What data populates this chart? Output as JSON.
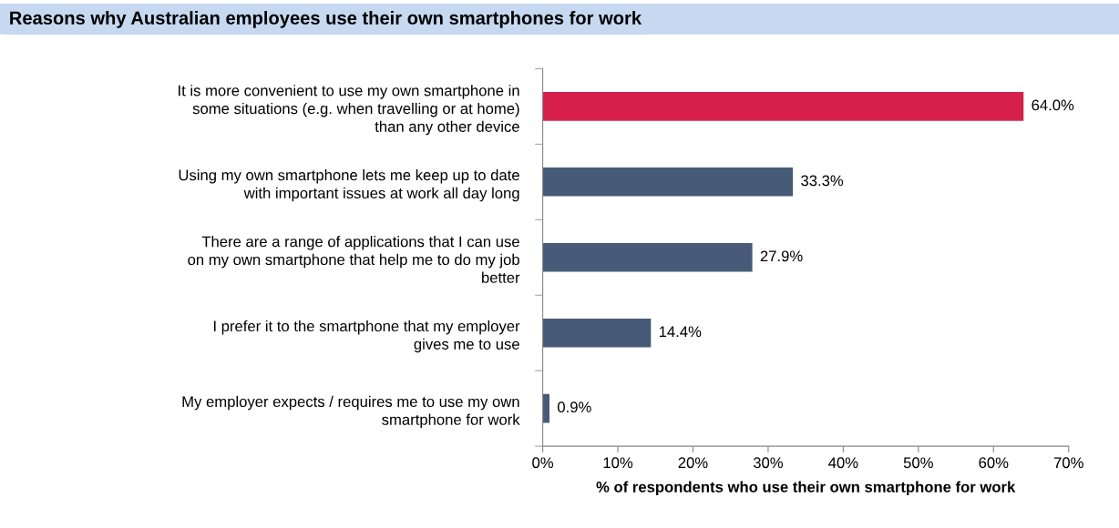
{
  "chart_data": {
    "type": "bar",
    "orientation": "horizontal",
    "title": "Reasons why Australian employees use their own smartphones for work",
    "xlabel": "% of respondents who use their own smartphone for work",
    "categories": [
      "It is more convenient to use my own smartphone in some situations (e.g. when travelling or at home) than any other device",
      "Using my own smartphone lets me keep up to date with important issues at work all day long",
      "There are a range of applications that I can use on my own smartphone that help me to do my job better",
      "I prefer it to the smartphone that my employer gives me to use",
      "My employer expects / requires me to use my own smartphone for work"
    ],
    "values": [
      64.0,
      33.3,
      27.9,
      14.4,
      0.9
    ],
    "value_labels": [
      "64.0%",
      "33.3%",
      "27.9%",
      "14.4%",
      "0.9%"
    ],
    "colors": [
      "#d71f4b",
      "#475a78",
      "#475a78",
      "#475a78",
      "#475a78"
    ],
    "xlim": [
      0,
      70
    ],
    "xticks": [
      {
        "value": 0,
        "label": "0%"
      },
      {
        "value": 10,
        "label": "10%"
      },
      {
        "value": 20,
        "label": "20%"
      },
      {
        "value": 30,
        "label": "30%"
      },
      {
        "value": 40,
        "label": "40%"
      },
      {
        "value": 50,
        "label": "50%"
      },
      {
        "value": 60,
        "label": "60%"
      },
      {
        "value": 70,
        "label": "70%"
      }
    ],
    "grid": false,
    "legend": false
  }
}
